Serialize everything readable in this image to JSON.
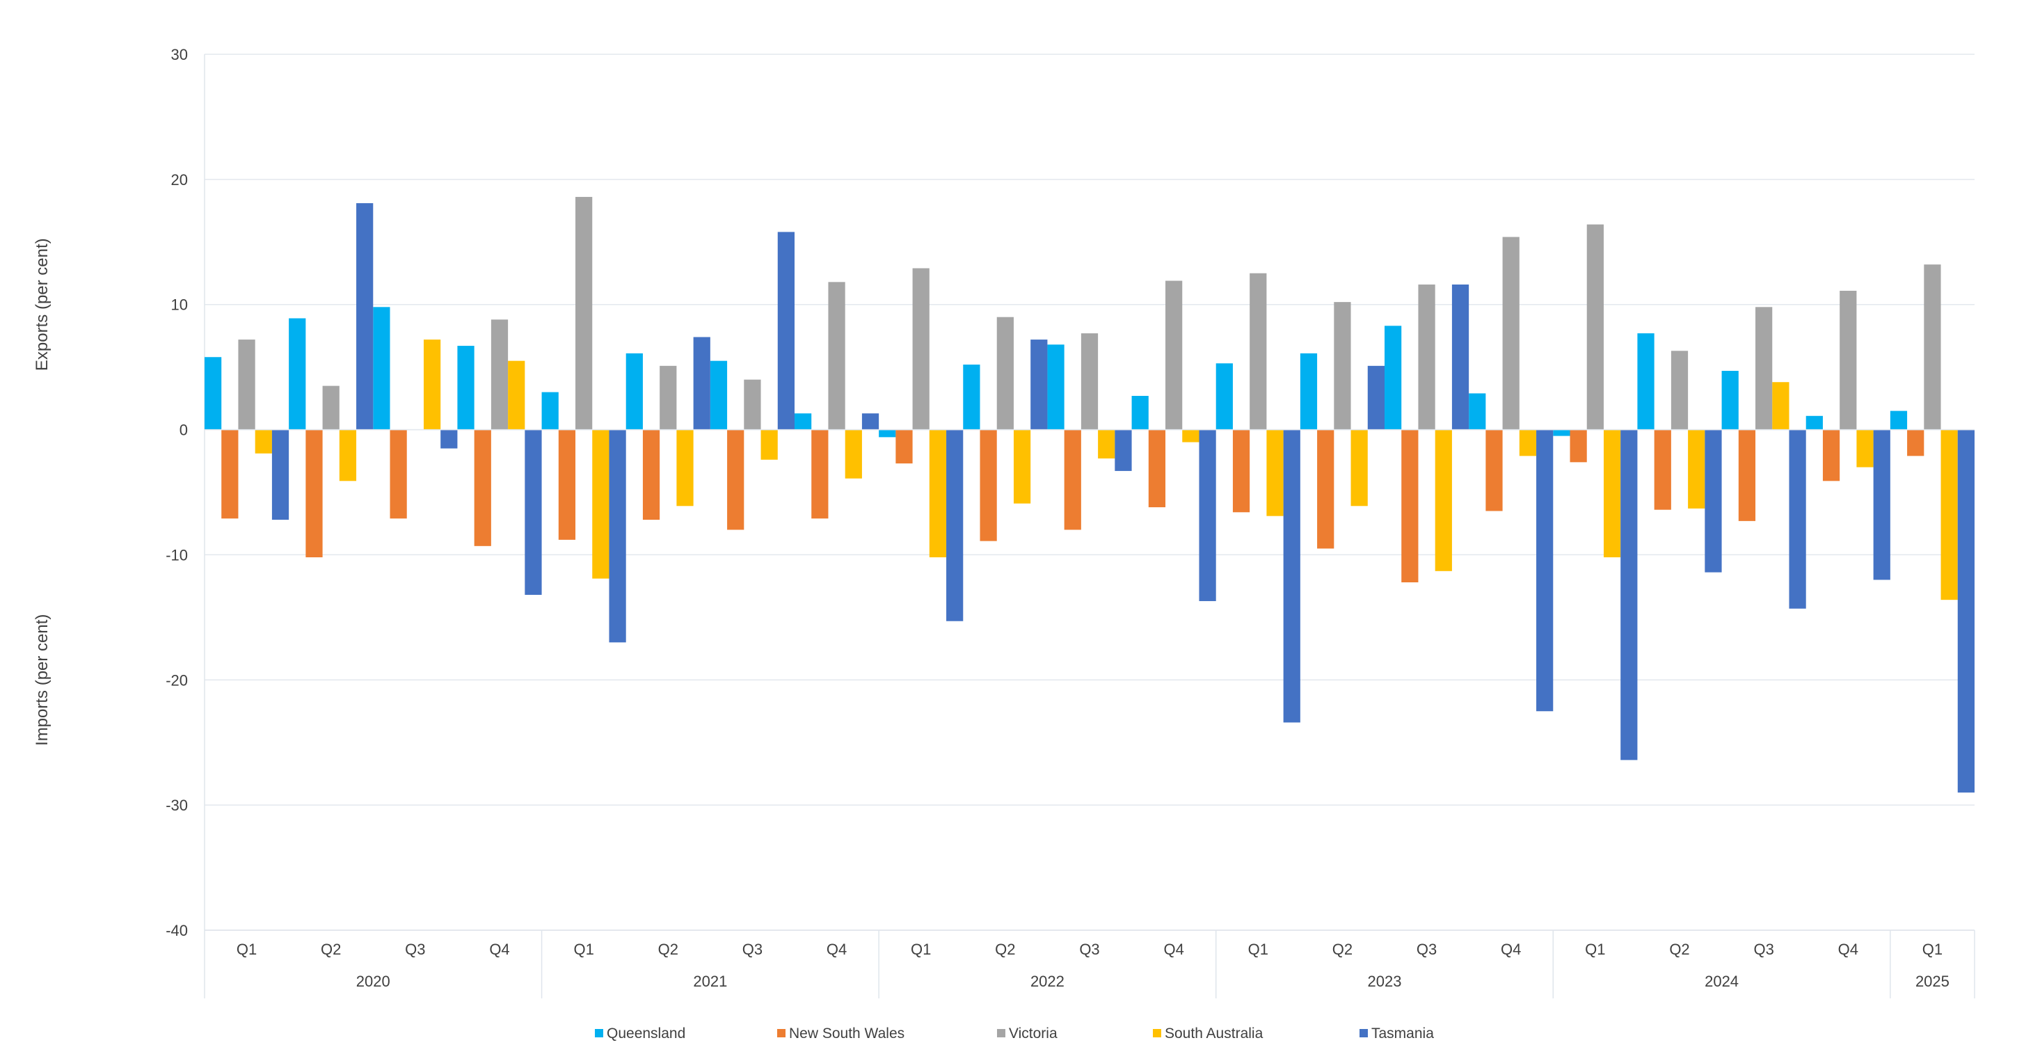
{
  "chart_data": {
    "type": "bar",
    "ylabel_top": "Exports (per cent)",
    "ylabel_bottom": "Imports (per cent)",
    "ylim": [
      -40,
      30
    ],
    "yticks": [
      30,
      20,
      10,
      0,
      -10,
      -20,
      -30,
      -40
    ],
    "grid": true,
    "legend_position": "bottom",
    "groups": [
      {
        "year": "2020",
        "quarters": [
          "Q1",
          "Q2",
          "Q3",
          "Q4"
        ]
      },
      {
        "year": "2021",
        "quarters": [
          "Q1",
          "Q2",
          "Q3",
          "Q4"
        ]
      },
      {
        "year": "2022",
        "quarters": [
          "Q1",
          "Q2",
          "Q3",
          "Q4"
        ]
      },
      {
        "year": "2023",
        "quarters": [
          "Q1",
          "Q2",
          "Q3",
          "Q4"
        ]
      },
      {
        "year": "2024",
        "quarters": [
          "Q1",
          "Q2",
          "Q3",
          "Q4"
        ]
      },
      {
        "year": "2025",
        "quarters": [
          "Q1"
        ]
      }
    ],
    "series": [
      {
        "name": "Queensland",
        "color": "#00B0F0",
        "values": [
          5.8,
          8.9,
          9.8,
          6.7,
          3.0,
          6.1,
          5.5,
          1.3,
          -0.6,
          5.2,
          6.8,
          2.7,
          5.3,
          6.1,
          8.3,
          2.9,
          -0.5,
          7.7,
          4.7,
          1.1,
          1.5
        ]
      },
      {
        "name": "New South Wales",
        "color": "#ED7D31",
        "values": [
          -7.1,
          -10.2,
          -7.1,
          -9.3,
          -8.8,
          -7.2,
          -8.0,
          -7.1,
          -2.7,
          -8.9,
          -8.0,
          -6.2,
          -6.6,
          -9.5,
          -12.2,
          -6.5,
          -2.6,
          -6.4,
          -7.3,
          -4.1,
          -2.1
        ]
      },
      {
        "name": "Victoria",
        "color": "#A5A5A5",
        "values": [
          7.2,
          3.5,
          0,
          8.8,
          18.6,
          5.1,
          4.0,
          11.8,
          12.9,
          9.0,
          7.7,
          11.9,
          12.5,
          10.2,
          11.6,
          15.4,
          16.4,
          6.3,
          9.8,
          11.1,
          13.2
        ]
      },
      {
        "name": "South Australia",
        "color": "#FFC000",
        "values": [
          -1.9,
          -4.1,
          7.2,
          5.5,
          -11.9,
          -6.1,
          -2.4,
          -3.9,
          -10.2,
          -5.9,
          -2.3,
          -1.0,
          -6.9,
          -6.1,
          -11.3,
          -2.1,
          -10.2,
          -6.3,
          3.8,
          -3.0,
          -13.6
        ]
      },
      {
        "name": "Tasmania",
        "color": "#4472C4",
        "values": [
          -7.2,
          18.1,
          -1.5,
          -13.2,
          -17.0,
          7.4,
          15.8,
          1.3,
          -15.3,
          7.2,
          -3.3,
          -13.7,
          -23.4,
          5.1,
          11.6,
          -22.5,
          -26.4,
          -11.4,
          -14.3,
          -12.0,
          -29.0
        ]
      }
    ]
  }
}
